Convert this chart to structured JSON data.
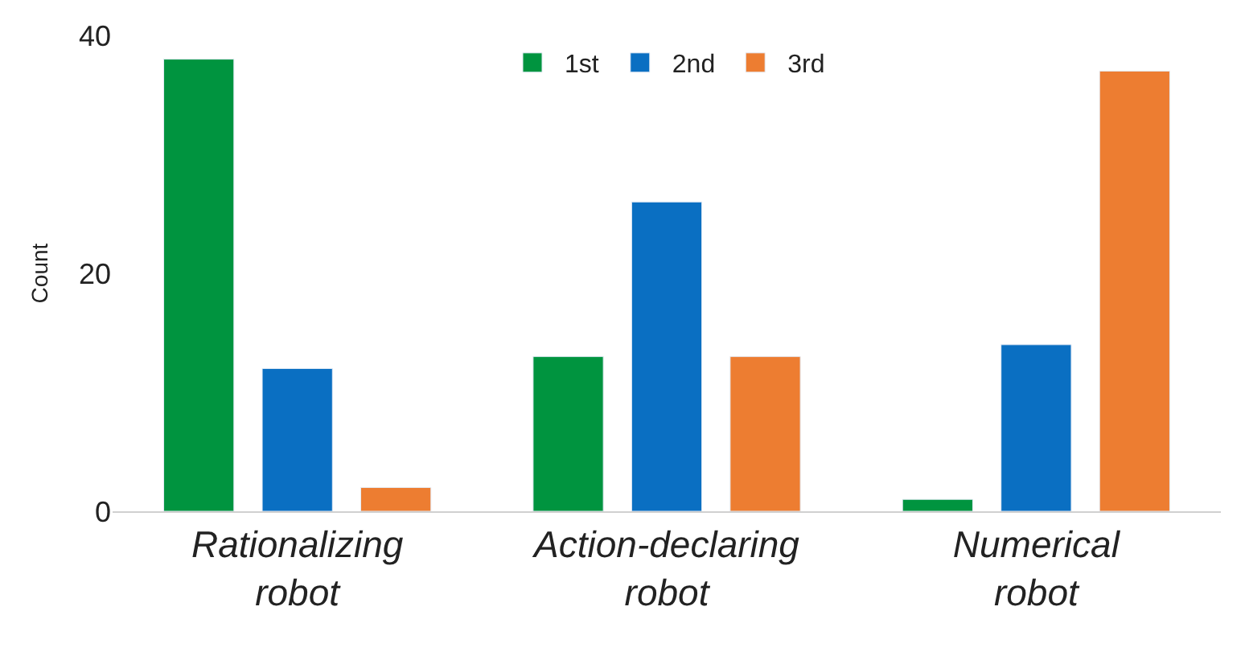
{
  "chart_data": {
    "type": "bar",
    "ylabel": "Count",
    "categories": [
      "Rationalizing\nrobot",
      "Action-declaring\nrobot",
      "Numerical\nrobot"
    ],
    "series": [
      {
        "name": "1st",
        "color": "#00943f",
        "values": [
          38,
          13,
          1
        ]
      },
      {
        "name": "2nd",
        "color": "#0a6fc2",
        "values": [
          12,
          26,
          14
        ]
      },
      {
        "name": "3rd",
        "color": "#ed7d31",
        "values": [
          2,
          13,
          37
        ]
      }
    ],
    "ylim": [
      0,
      40
    ],
    "yticks": [
      0,
      20,
      40
    ],
    "legend": "top"
  }
}
